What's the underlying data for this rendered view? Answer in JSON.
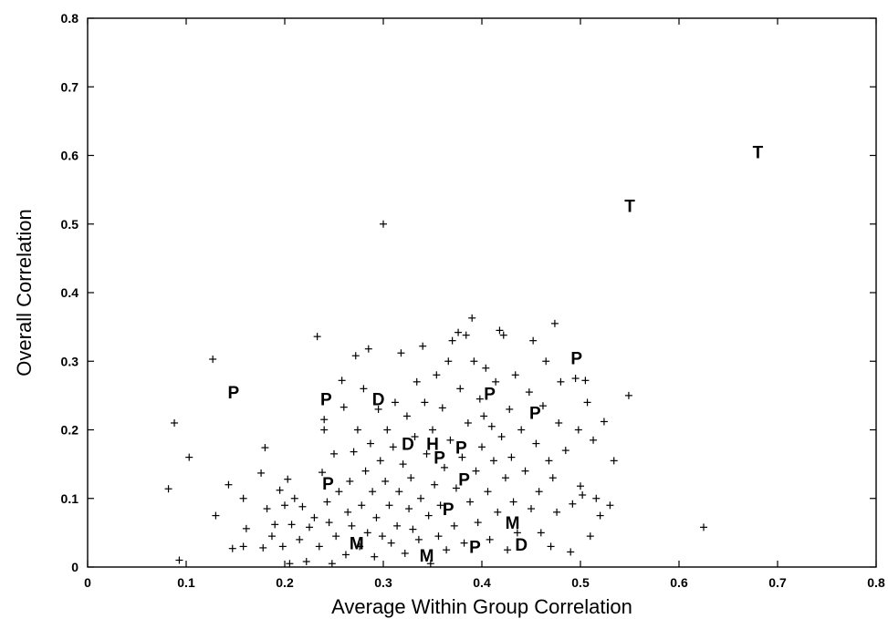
{
  "chart_data": {
    "type": "scatter",
    "title": "",
    "xlabel": "Average Within Group Correlation",
    "ylabel": "Overall Correlation",
    "xlim": [
      0,
      0.8
    ],
    "ylim": [
      0,
      0.8
    ],
    "xticks": [
      "0",
      "0.1",
      "0.2",
      "0.3",
      "0.4",
      "0.5",
      "0.6",
      "0.7",
      "0.8"
    ],
    "yticks": [
      "0",
      "0.1",
      "0.2",
      "0.3",
      "0.4",
      "0.5",
      "0.6",
      "0.7",
      "0.8"
    ],
    "grid": false,
    "labeled_points": [
      {
        "label": "T",
        "x": 0.68,
        "y": 0.605
      },
      {
        "label": "T",
        "x": 0.55,
        "y": 0.527
      },
      {
        "label": "P",
        "x": 0.148,
        "y": 0.255
      },
      {
        "label": "P",
        "x": 0.242,
        "y": 0.245
      },
      {
        "label": "D",
        "x": 0.295,
        "y": 0.245
      },
      {
        "label": "P",
        "x": 0.408,
        "y": 0.253
      },
      {
        "label": "P",
        "x": 0.454,
        "y": 0.225
      },
      {
        "label": "P",
        "x": 0.496,
        "y": 0.305
      },
      {
        "label": "D",
        "x": 0.325,
        "y": 0.18
      },
      {
        "label": "H",
        "x": 0.35,
        "y": 0.18
      },
      {
        "label": "P",
        "x": 0.379,
        "y": 0.175
      },
      {
        "label": "P",
        "x": 0.357,
        "y": 0.16
      },
      {
        "label": "P",
        "x": 0.382,
        "y": 0.128
      },
      {
        "label": "P",
        "x": 0.244,
        "y": 0.122
      },
      {
        "label": "P",
        "x": 0.366,
        "y": 0.085
      },
      {
        "label": "M",
        "x": 0.431,
        "y": 0.065
      },
      {
        "label": "M",
        "x": 0.273,
        "y": 0.035
      },
      {
        "label": "M",
        "x": 0.344,
        "y": 0.017
      },
      {
        "label": "P",
        "x": 0.393,
        "y": 0.03
      },
      {
        "label": "D",
        "x": 0.44,
        "y": 0.033
      }
    ],
    "points": [
      [
        0.127,
        0.303
      ],
      [
        0.088,
        0.21
      ],
      [
        0.082,
        0.114
      ],
      [
        0.103,
        0.16
      ],
      [
        0.093,
        0.01
      ],
      [
        0.13,
        0.075
      ],
      [
        0.143,
        0.12
      ],
      [
        0.147,
        0.027
      ],
      [
        0.158,
        0.03
      ],
      [
        0.158,
        0.1
      ],
      [
        0.161,
        0.056
      ],
      [
        0.176,
        0.137
      ],
      [
        0.18,
        0.174
      ],
      [
        0.178,
        0.028
      ],
      [
        0.182,
        0.085
      ],
      [
        0.187,
        0.045
      ],
      [
        0.19,
        0.062
      ],
      [
        0.195,
        0.112
      ],
      [
        0.198,
        0.03
      ],
      [
        0.2,
        0.09
      ],
      [
        0.203,
        0.128
      ],
      [
        0.205,
        0.005
      ],
      [
        0.207,
        0.062
      ],
      [
        0.21,
        0.1
      ],
      [
        0.215,
        0.04
      ],
      [
        0.218,
        0.088
      ],
      [
        0.222,
        0.008
      ],
      [
        0.225,
        0.058
      ],
      [
        0.23,
        0.072
      ],
      [
        0.233,
        0.336
      ],
      [
        0.235,
        0.03
      ],
      [
        0.238,
        0.138
      ],
      [
        0.24,
        0.215
      ],
      [
        0.24,
        0.2
      ],
      [
        0.243,
        0.095
      ],
      [
        0.245,
        0.065
      ],
      [
        0.248,
        0.005
      ],
      [
        0.25,
        0.165
      ],
      [
        0.252,
        0.045
      ],
      [
        0.255,
        0.11
      ],
      [
        0.258,
        0.272
      ],
      [
        0.26,
        0.233
      ],
      [
        0.262,
        0.018
      ],
      [
        0.264,
        0.08
      ],
      [
        0.266,
        0.125
      ],
      [
        0.268,
        0.06
      ],
      [
        0.27,
        0.168
      ],
      [
        0.272,
        0.308
      ],
      [
        0.274,
        0.2
      ],
      [
        0.276,
        0.03
      ],
      [
        0.278,
        0.09
      ],
      [
        0.28,
        0.26
      ],
      [
        0.282,
        0.14
      ],
      [
        0.284,
        0.05
      ],
      [
        0.285,
        0.318
      ],
      [
        0.287,
        0.18
      ],
      [
        0.289,
        0.11
      ],
      [
        0.291,
        0.015
      ],
      [
        0.293,
        0.072
      ],
      [
        0.295,
        0.23
      ],
      [
        0.297,
        0.155
      ],
      [
        0.299,
        0.045
      ],
      [
        0.3,
        0.5
      ],
      [
        0.302,
        0.125
      ],
      [
        0.304,
        0.2
      ],
      [
        0.306,
        0.09
      ],
      [
        0.308,
        0.035
      ],
      [
        0.31,
        0.175
      ],
      [
        0.312,
        0.24
      ],
      [
        0.314,
        0.06
      ],
      [
        0.316,
        0.11
      ],
      [
        0.318,
        0.312
      ],
      [
        0.32,
        0.15
      ],
      [
        0.322,
        0.02
      ],
      [
        0.324,
        0.22
      ],
      [
        0.326,
        0.085
      ],
      [
        0.328,
        0.13
      ],
      [
        0.33,
        0.055
      ],
      [
        0.332,
        0.19
      ],
      [
        0.334,
        0.27
      ],
      [
        0.336,
        0.04
      ],
      [
        0.338,
        0.1
      ],
      [
        0.34,
        0.322
      ],
      [
        0.342,
        0.24
      ],
      [
        0.344,
        0.165
      ],
      [
        0.346,
        0.075
      ],
      [
        0.348,
        0.005
      ],
      [
        0.35,
        0.2
      ],
      [
        0.352,
        0.12
      ],
      [
        0.354,
        0.28
      ],
      [
        0.356,
        0.045
      ],
      [
        0.358,
        0.09
      ],
      [
        0.36,
        0.232
      ],
      [
        0.362,
        0.145
      ],
      [
        0.364,
        0.025
      ],
      [
        0.366,
        0.3
      ],
      [
        0.368,
        0.185
      ],
      [
        0.37,
        0.33
      ],
      [
        0.372,
        0.06
      ],
      [
        0.374,
        0.115
      ],
      [
        0.376,
        0.342
      ],
      [
        0.378,
        0.26
      ],
      [
        0.38,
        0.16
      ],
      [
        0.382,
        0.035
      ],
      [
        0.384,
        0.338
      ],
      [
        0.386,
        0.21
      ],
      [
        0.388,
        0.095
      ],
      [
        0.39,
        0.363
      ],
      [
        0.392,
        0.3
      ],
      [
        0.394,
        0.14
      ],
      [
        0.396,
        0.065
      ],
      [
        0.398,
        0.245
      ],
      [
        0.4,
        0.175
      ],
      [
        0.402,
        0.22
      ],
      [
        0.404,
        0.29
      ],
      [
        0.406,
        0.11
      ],
      [
        0.408,
        0.04
      ],
      [
        0.41,
        0.205
      ],
      [
        0.412,
        0.155
      ],
      [
        0.414,
        0.27
      ],
      [
        0.416,
        0.08
      ],
      [
        0.418,
        0.345
      ],
      [
        0.42,
        0.19
      ],
      [
        0.422,
        0.338
      ],
      [
        0.424,
        0.13
      ],
      [
        0.426,
        0.025
      ],
      [
        0.428,
        0.23
      ],
      [
        0.43,
        0.16
      ],
      [
        0.432,
        0.095
      ],
      [
        0.434,
        0.28
      ],
      [
        0.436,
        0.05
      ],
      [
        0.44,
        0.2
      ],
      [
        0.444,
        0.14
      ],
      [
        0.448,
        0.255
      ],
      [
        0.45,
        0.085
      ],
      [
        0.452,
        0.33
      ],
      [
        0.455,
        0.18
      ],
      [
        0.458,
        0.11
      ],
      [
        0.46,
        0.05
      ],
      [
        0.462,
        0.235
      ],
      [
        0.465,
        0.3
      ],
      [
        0.468,
        0.155
      ],
      [
        0.47,
        0.03
      ],
      [
        0.472,
        0.13
      ],
      [
        0.474,
        0.355
      ],
      [
        0.476,
        0.08
      ],
      [
        0.478,
        0.21
      ],
      [
        0.48,
        0.27
      ],
      [
        0.485,
        0.17
      ],
      [
        0.49,
        0.022
      ],
      [
        0.492,
        0.092
      ],
      [
        0.495,
        0.275
      ],
      [
        0.498,
        0.2
      ],
      [
        0.5,
        0.118
      ],
      [
        0.502,
        0.105
      ],
      [
        0.505,
        0.272
      ],
      [
        0.507,
        0.24
      ],
      [
        0.51,
        0.045
      ],
      [
        0.513,
        0.185
      ],
      [
        0.516,
        0.1
      ],
      [
        0.52,
        0.075
      ],
      [
        0.524,
        0.212
      ],
      [
        0.53,
        0.09
      ],
      [
        0.534,
        0.155
      ],
      [
        0.549,
        0.25
      ],
      [
        0.625,
        0.058
      ]
    ]
  }
}
